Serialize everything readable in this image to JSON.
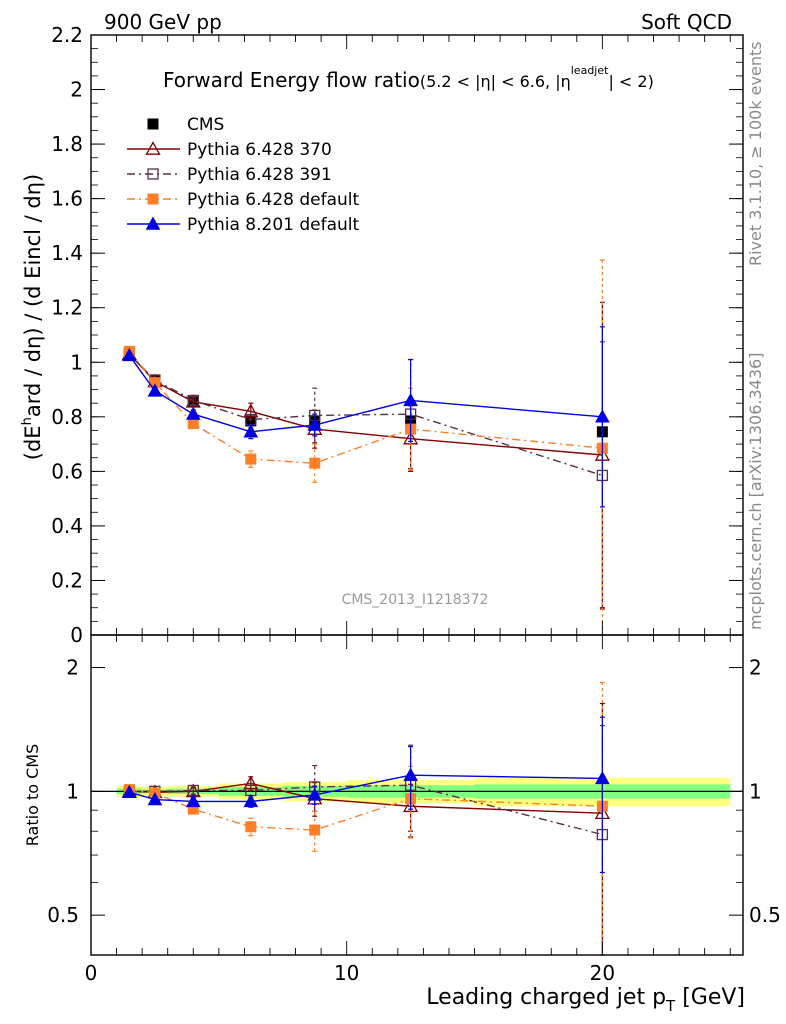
{
  "header": {
    "left": "900 GeV pp",
    "right": "Soft QCD"
  },
  "side_text": {
    "rivet": "Rivet 3.1.10, ≥ 100k events",
    "mcplots": "mcplots.cern.ch [arXiv:1306.3436]"
  },
  "chart_data": [
    {
      "type": "scatter",
      "panel": "main",
      "title_main": "Forward Energy flow ratio",
      "title_cond": "(5.2 < |η| < 6.6, |η",
      "title_cond_sup": "leadjet",
      "title_cond_end": "| < 2)",
      "ylabel_a": "(dE",
      "ylabel_sup": "h",
      "ylabel_b": "ard / dη) / (d Eincl / dη)",
      "xlim": [
        0,
        25.5
      ],
      "ylim": [
        0,
        2.2
      ],
      "yticks": [
        0,
        0.2,
        0.4,
        0.6,
        0.8,
        1,
        1.2,
        1.4,
        1.6,
        1.8,
        2,
        2.2
      ],
      "ytick_labels": [
        "0",
        "0.2",
        "0.4",
        "0.6",
        "0.8",
        "1",
        "1.2",
        "1.4",
        "1.6",
        "1.8",
        "2",
        "2.2"
      ],
      "watermark": "CMS_2013_I1218372",
      "x": [
        1.5,
        2.5,
        4.0,
        6.25,
        8.75,
        12.5,
        20.0
      ],
      "series": [
        {
          "name": "CMS",
          "color": "#000000",
          "marker": "square-filled",
          "line": "none",
          "values": [
            1.03,
            0.935,
            0.855,
            0.785,
            0.785,
            0.785,
            0.745
          ],
          "errors": [
            0.005,
            0.005,
            0.005,
            0.005,
            0.005,
            0.005,
            0.005
          ]
        },
        {
          "name": "Pythia 6.428 370",
          "color": "#800000",
          "marker": "triangle-open",
          "line": "solid",
          "values": [
            1.03,
            0.93,
            0.855,
            0.82,
            0.755,
            0.72,
            0.66
          ],
          "errors": [
            0.01,
            0.01,
            0.015,
            0.03,
            0.07,
            0.12,
            0.56
          ]
        },
        {
          "name": "Pythia 6.428 391",
          "color": "#5a2f4a",
          "marker": "square-open",
          "line": "dashdot",
          "values": [
            1.03,
            0.935,
            0.86,
            0.79,
            0.805,
            0.81,
            0.585
          ],
          "errors": [
            0.01,
            0.01,
            0.015,
            0.03,
            0.1,
            0.2,
            0.49
          ]
        },
        {
          "name": "Pythia 6.428 default",
          "color": "#ff7f27",
          "marker": "square-filled",
          "line": "dashdot",
          "values": [
            1.04,
            0.925,
            0.775,
            0.645,
            0.63,
            0.755,
            0.685
          ],
          "errors": [
            0.01,
            0.01,
            0.015,
            0.03,
            0.07,
            0.15,
            0.69
          ]
        },
        {
          "name": "Pythia 8.201 default",
          "color": "#0000e0",
          "marker": "triangle-filled",
          "line": "solid",
          "values": [
            1.025,
            0.895,
            0.81,
            0.745,
            0.77,
            0.86,
            0.8
          ],
          "errors": [
            0.01,
            0.01,
            0.015,
            0.025,
            0.04,
            0.15,
            0.33
          ]
        }
      ]
    },
    {
      "type": "scatter",
      "panel": "ratio",
      "ylabel": "Ratio to CMS",
      "yscale": "log",
      "ylim": [
        0.4,
        2.4
      ],
      "yticks": [
        0.5,
        1,
        2
      ],
      "ytick_labels": [
        "0.5",
        "1",
        "2"
      ],
      "xlim": [
        0,
        25.5
      ],
      "xticks": [
        0,
        10,
        20
      ],
      "xtick_labels": [
        "0",
        "10",
        "20"
      ],
      "xlabel_main": "Leading charged jet p",
      "xlabel_sub": "T",
      "xlabel_unit": " [GeV]",
      "band_edges": [
        1.0,
        2.0,
        3.0,
        5.0,
        7.5,
        10.0,
        15.0,
        25.0
      ],
      "band_yellow": [
        [
          0.97,
          1.03
        ],
        [
          0.975,
          1.025
        ],
        [
          0.97,
          1.03
        ],
        [
          0.955,
          1.045
        ],
        [
          0.945,
          1.055
        ],
        [
          0.935,
          1.065
        ],
        [
          0.92,
          1.08
        ]
      ],
      "band_green": [
        [
          0.985,
          1.015
        ],
        [
          0.99,
          1.01
        ],
        [
          0.985,
          1.015
        ],
        [
          0.975,
          1.025
        ],
        [
          0.97,
          1.03
        ],
        [
          0.965,
          1.035
        ],
        [
          0.96,
          1.04
        ]
      ],
      "x": [
        1.5,
        2.5,
        4.0,
        6.25,
        8.75,
        12.5,
        20.0
      ],
      "series": [
        {
          "name": "Pythia 6.428 370",
          "color": "#800000",
          "marker": "triangle-open",
          "line": "solid",
          "values": [
            1.0,
            0.995,
            1.0,
            1.045,
            0.96,
            0.92,
            0.885
          ],
          "errors": [
            0.01,
            0.01,
            0.02,
            0.04,
            0.09,
            0.12,
            0.75
          ]
        },
        {
          "name": "Pythia 6.428 391",
          "color": "#5a2f4a",
          "marker": "square-open",
          "line": "dashdot",
          "values": [
            1.0,
            1.0,
            1.005,
            1.005,
            1.025,
            1.035,
            0.785
          ],
          "errors": [
            0.01,
            0.01,
            0.02,
            0.04,
            0.13,
            0.26,
            0.66
          ]
        },
        {
          "name": "Pythia 6.428 default",
          "color": "#ff7f27",
          "marker": "square-filled",
          "line": "dashdot",
          "values": [
            1.01,
            0.99,
            0.905,
            0.82,
            0.805,
            0.96,
            0.92
          ],
          "errors": [
            0.01,
            0.01,
            0.02,
            0.04,
            0.09,
            0.19,
            0.92
          ]
        },
        {
          "name": "Pythia 8.201 default",
          "color": "#0000e0",
          "marker": "triangle-filled",
          "line": "solid",
          "values": [
            0.995,
            0.955,
            0.945,
            0.945,
            0.98,
            1.095,
            1.075
          ],
          "errors": [
            0.01,
            0.01,
            0.02,
            0.03,
            0.05,
            0.19,
            0.44
          ]
        }
      ]
    }
  ]
}
